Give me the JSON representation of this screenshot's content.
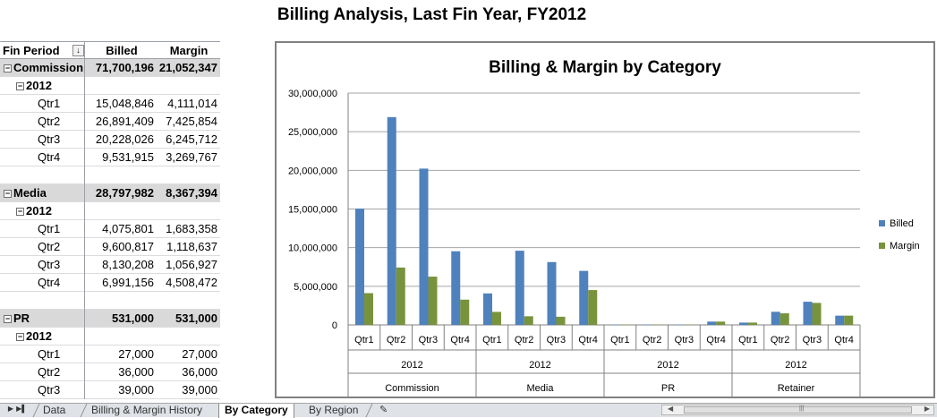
{
  "report_title": "Billing Analysis, Last Fin Year, FY2012",
  "pivot": {
    "headers": {
      "col0": "Fin Period",
      "col1": "Billed",
      "col2": "Margin"
    },
    "rows": [
      {
        "type": "cat",
        "label": "Commission",
        "billed": "71,700,196",
        "margin": "21,052,347"
      },
      {
        "type": "year",
        "label": "2012",
        "billed": "",
        "margin": ""
      },
      {
        "type": "qtr",
        "label": "Qtr1",
        "billed": "15,048,846",
        "margin": "4,111,014"
      },
      {
        "type": "qtr",
        "label": "Qtr2",
        "billed": "26,891,409",
        "margin": "7,425,854"
      },
      {
        "type": "qtr",
        "label": "Qtr3",
        "billed": "20,228,026",
        "margin": "6,245,712"
      },
      {
        "type": "qtr",
        "label": "Qtr4",
        "billed": "9,531,915",
        "margin": "3,269,767"
      },
      {
        "type": "blank",
        "label": "",
        "billed": "",
        "margin": ""
      },
      {
        "type": "cat",
        "label": "Media",
        "billed": "28,797,982",
        "margin": "8,367,394"
      },
      {
        "type": "year",
        "label": "2012",
        "billed": "",
        "margin": ""
      },
      {
        "type": "qtr",
        "label": "Qtr1",
        "billed": "4,075,801",
        "margin": "1,683,358"
      },
      {
        "type": "qtr",
        "label": "Qtr2",
        "billed": "9,600,817",
        "margin": "1,118,637"
      },
      {
        "type": "qtr",
        "label": "Qtr3",
        "billed": "8,130,208",
        "margin": "1,056,927"
      },
      {
        "type": "qtr",
        "label": "Qtr4",
        "billed": "6,991,156",
        "margin": "4,508,472"
      },
      {
        "type": "blank",
        "label": "",
        "billed": "",
        "margin": ""
      },
      {
        "type": "cat",
        "label": "PR",
        "billed": "531,000",
        "margin": "531,000"
      },
      {
        "type": "year",
        "label": "2012",
        "billed": "",
        "margin": ""
      },
      {
        "type": "qtr",
        "label": "Qtr1",
        "billed": "27,000",
        "margin": "27,000"
      },
      {
        "type": "qtr",
        "label": "Qtr2",
        "billed": "36,000",
        "margin": "36,000"
      },
      {
        "type": "qtr",
        "label": "Qtr3",
        "billed": "39,000",
        "margin": "39,000"
      }
    ]
  },
  "chart_data": {
    "type": "bar",
    "title": "Billing & Margin by Category",
    "ylim": [
      0,
      30000000
    ],
    "yticks": [
      "0",
      "5,000,000",
      "10,000,000",
      "15,000,000",
      "20,000,000",
      "25,000,000",
      "30,000,000"
    ],
    "ytick_values": [
      0,
      5000000,
      10000000,
      15000000,
      20000000,
      25000000,
      30000000
    ],
    "grid": true,
    "legend_position": "right",
    "categories": [
      "Qtr1",
      "Qtr2",
      "Qtr3",
      "Qtr4",
      "Qtr1",
      "Qtr2",
      "Qtr3",
      "Qtr4",
      "Qtr1",
      "Qtr2",
      "Qtr3",
      "Qtr4",
      "Qtr1",
      "Qtr2",
      "Qtr3",
      "Qtr4"
    ],
    "groups": [
      {
        "year": "2012",
        "category": "Commission"
      },
      {
        "year": "2012",
        "category": "Media"
      },
      {
        "year": "2012",
        "category": "PR"
      },
      {
        "year": "2012",
        "category": "Retainer"
      }
    ],
    "series": [
      {
        "name": "Billed",
        "color": "#4f81bd",
        "values": [
          15048846,
          26891409,
          20228026,
          9531915,
          4075801,
          9600817,
          8130208,
          6991156,
          27000,
          36000,
          39000,
          429000,
          300000,
          1700000,
          3000000,
          1200000
        ]
      },
      {
        "name": "Margin",
        "color": "#77933c",
        "values": [
          4111014,
          7425854,
          6245712,
          3269767,
          1683358,
          1118637,
          1056927,
          4508472,
          27000,
          36000,
          39000,
          429000,
          300000,
          1500000,
          2850000,
          1200000
        ]
      }
    ]
  },
  "sheet_tabs": [
    {
      "label": "Data",
      "active": false
    },
    {
      "label": "Billing & Margin History",
      "active": false
    },
    {
      "label": "By Category",
      "active": true
    },
    {
      "label": "By Region",
      "active": false
    }
  ]
}
